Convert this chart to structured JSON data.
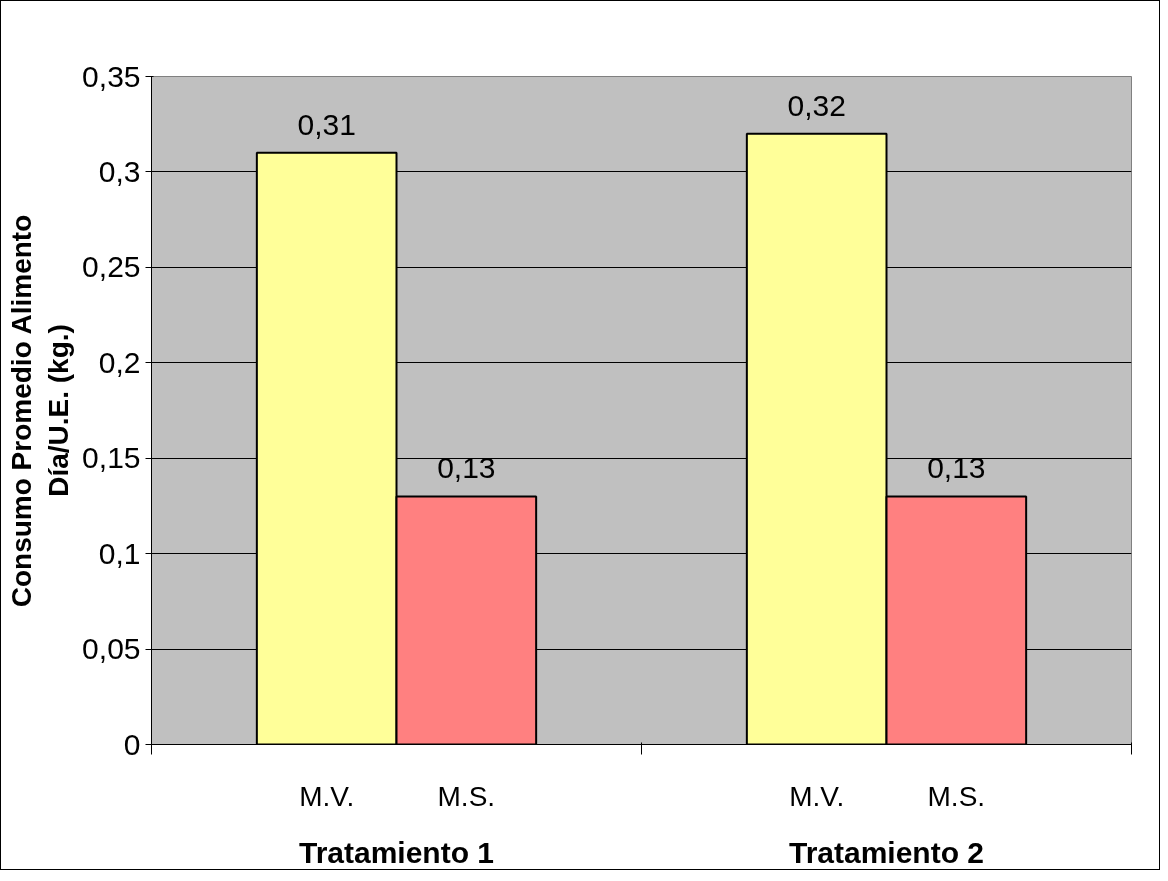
{
  "chart_data": {
    "type": "bar",
    "ylabel": "Consumo Promedio Alimento\nDía/U.E. (kg.)",
    "categories": [
      "Tratamiento 1",
      "Tratamiento 2"
    ],
    "series": [
      {
        "name": "M.V.",
        "color": "#ffff99",
        "values": [
          0.31,
          0.32
        ],
        "value_labels": [
          "0,31",
          "0,32"
        ]
      },
      {
        "name": "M.S.",
        "color": "#ff8080",
        "values": [
          0.13,
          0.13
        ],
        "value_labels": [
          "0,13",
          "0,13"
        ]
      }
    ],
    "ylim": [
      0,
      0.35
    ],
    "yticks": [
      0,
      {
        "value": 0.05,
        "label": "0,05"
      },
      {
        "value": 0.1,
        "label": "0,1"
      },
      {
        "value": 0.15,
        "label": "0,15"
      },
      {
        "value": 0.2,
        "label": "0,2"
      },
      {
        "value": 0.25,
        "label": "0,25"
      },
      {
        "value": 0.3,
        "label": "0,3"
      },
      {
        "value": 0.35,
        "label": "0,35"
      }
    ],
    "grid": "y"
  }
}
